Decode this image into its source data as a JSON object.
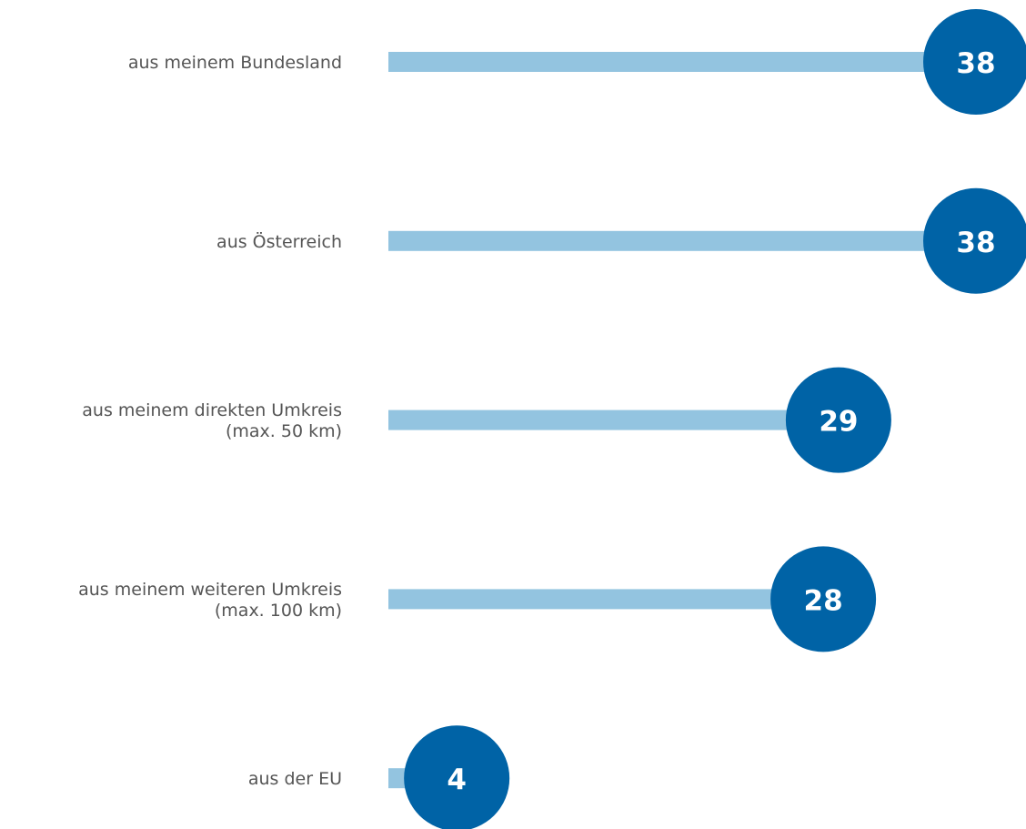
{
  "chart_data": {
    "type": "lollipop",
    "categories": [
      "aus meinem Bundesland",
      "aus Österreich",
      "aus meinem direkten Umkreis\n(max. 50 km)",
      "aus meinem weiteren Umkreis\n(max. 100 km)",
      "aus der EU"
    ],
    "values": [
      38,
      38,
      29,
      28,
      4
    ],
    "bar_color": "#93c4e0",
    "dot_color": "#0063a6"
  }
}
